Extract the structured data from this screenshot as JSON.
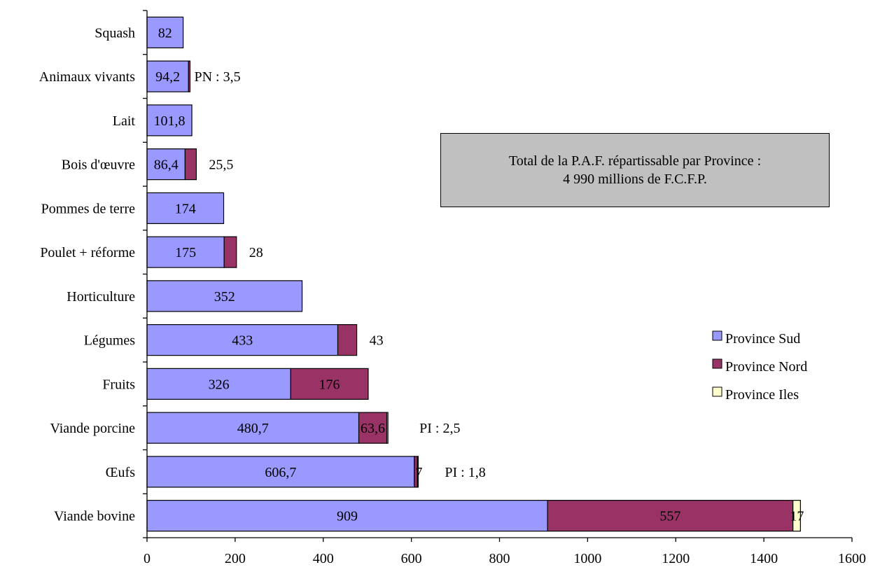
{
  "chart_data": {
    "type": "bar",
    "orientation": "horizontal",
    "stacked": true,
    "categories": [
      "Squash",
      "Animaux vivants",
      "Lait",
      "Bois d'œuvre",
      "Pommes de terre",
      "Poulet + réforme",
      "Horticulture",
      "Légumes",
      "Fruits",
      "Viande porcine",
      "Œufs",
      "Viande bovine"
    ],
    "series": [
      {
        "name": "Province Sud",
        "color": "#9999ff",
        "values": [
          82,
          94.2,
          101.8,
          86.4,
          174,
          175,
          352,
          433,
          326,
          480.7,
          606.7,
          909
        ]
      },
      {
        "name": "Province Nord",
        "color": "#993366",
        "values": [
          0,
          3.5,
          0,
          25.5,
          0,
          28,
          0,
          43,
          176,
          63.6,
          7,
          557
        ]
      },
      {
        "name": "Province Iles",
        "color": "#ffffcc",
        "values": [
          0,
          0,
          0,
          0,
          0,
          0,
          0,
          0,
          0,
          2.5,
          1.8,
          17
        ]
      }
    ],
    "inside_labels": [
      [
        "82"
      ],
      [
        "94,2"
      ],
      [
        "101,8"
      ],
      [
        "86,4"
      ],
      [
        "174"
      ],
      [
        "175"
      ],
      [
        "352"
      ],
      [
        "433"
      ],
      [
        "326",
        "176"
      ],
      [
        "480,7",
        "63,6"
      ],
      [
        "606,7"
      ],
      [
        "909",
        "557"
      ]
    ],
    "outside_labels": [
      "",
      "PN : 3,5",
      "",
      "25,5",
      "",
      "28",
      "",
      "43",
      "",
      "PI : 2,5",
      "7",
      "17"
    ],
    "extra_labels": [
      "",
      "",
      "",
      "",
      "",
      "",
      "",
      "",
      "",
      "",
      "PI : 1,8",
      ""
    ],
    "xlim": [
      0,
      1600
    ],
    "xticks": [
      "0",
      "200",
      "400",
      "600",
      "800",
      "1000",
      "1200",
      "1400",
      "1600"
    ],
    "grid": false,
    "legend_position": "right"
  },
  "annotation": {
    "line1": "Total de la P.A.F. répartissable par Province :",
    "line2": "4 990 millions de F.C.F.P."
  }
}
